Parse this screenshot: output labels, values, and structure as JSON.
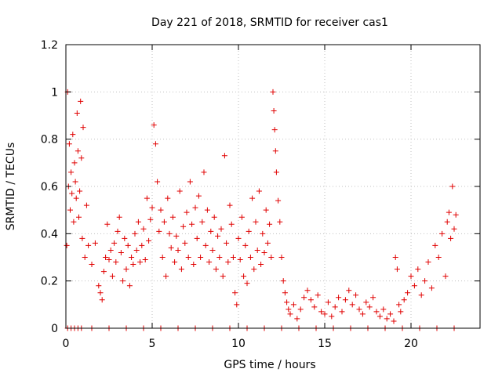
{
  "chart_data": {
    "type": "scatter",
    "title": "Day 221 of 2018, SRMTID for receiver cas1",
    "xlabel": "GPS time / hours",
    "ylabel": "SRMTID / TECUs",
    "xlim": [
      0,
      24
    ],
    "ylim": [
      0,
      1.2
    ],
    "x_ticks": [
      0,
      5,
      10,
      15,
      20
    ],
    "x_tick_labels": [
      "0",
      "5",
      "10",
      "15",
      "20"
    ],
    "y_ticks": [
      0,
      0.2,
      0.4,
      0.6,
      0.8,
      1,
      1.2
    ],
    "y_tick_labels": [
      "0",
      "0.2",
      "0.4",
      "0.6",
      "0.8",
      "1",
      "1.2"
    ],
    "grid": true,
    "marker": "+",
    "color": "#e00000",
    "series": [
      {
        "name": "SRMTID",
        "x": [
          0.05,
          0.1,
          0.15,
          0.2,
          0.25,
          0.3,
          0.35,
          0.4,
          0.45,
          0.5,
          0.55,
          0.6,
          0.65,
          0.7,
          0.75,
          0.8,
          0.85,
          0.9,
          0.95,
          1.0,
          1.1,
          1.2,
          1.3,
          1.5,
          1.7,
          1.9,
          2.0,
          2.1,
          2.2,
          2.3,
          2.4,
          2.5,
          2.6,
          2.7,
          2.8,
          2.9,
          3.0,
          3.1,
          3.2,
          3.3,
          3.4,
          3.5,
          3.6,
          3.7,
          3.8,
          3.9,
          4.0,
          4.1,
          4.2,
          4.3,
          4.4,
          4.5,
          4.6,
          4.7,
          4.8,
          4.9,
          5.0,
          5.1,
          5.2,
          5.3,
          5.4,
          5.5,
          5.6,
          5.7,
          5.8,
          5.9,
          6.0,
          6.1,
          6.2,
          6.3,
          6.4,
          6.5,
          6.6,
          6.7,
          6.8,
          6.9,
          7.0,
          7.1,
          7.2,
          7.3,
          7.4,
          7.5,
          7.6,
          7.7,
          7.8,
          7.9,
          8.0,
          8.1,
          8.2,
          8.3,
          8.4,
          8.5,
          8.6,
          8.7,
          8.8,
          8.9,
          9.0,
          9.1,
          9.2,
          9.3,
          9.4,
          9.5,
          9.6,
          9.7,
          9.8,
          9.9,
          10.0,
          10.1,
          10.2,
          10.3,
          10.4,
          10.5,
          10.6,
          10.7,
          10.8,
          10.9,
          11.0,
          11.1,
          11.2,
          11.3,
          11.4,
          11.5,
          11.6,
          11.7,
          11.8,
          11.9,
          12.0,
          12.05,
          12.1,
          12.15,
          12.2,
          12.3,
          12.4,
          12.5,
          12.6,
          12.7,
          12.8,
          12.9,
          13.0,
          13.2,
          13.4,
          13.6,
          13.8,
          14.0,
          14.2,
          14.4,
          14.6,
          14.8,
          15.0,
          15.2,
          15.4,
          15.6,
          15.8,
          16.0,
          16.2,
          16.4,
          16.6,
          16.8,
          17.0,
          17.2,
          17.4,
          17.6,
          17.8,
          18.0,
          18.2,
          18.4,
          18.6,
          18.8,
          19.0,
          19.1,
          19.2,
          19.3,
          19.4,
          19.6,
          19.8,
          20.0,
          20.2,
          20.4,
          20.6,
          20.8,
          21.0,
          21.2,
          21.4,
          21.6,
          21.8,
          22.0,
          22.1,
          22.2,
          22.3,
          22.4,
          22.5,
          22.6,
          0.1,
          0.3,
          0.5,
          0.7,
          0.9,
          1.5,
          2.5,
          3.5,
          4.5,
          5.5,
          6.5,
          7.5,
          8.5,
          9.5,
          10.5,
          11.5,
          12.5,
          13.5,
          14.5,
          15.5,
          16.5,
          17.5,
          18.5,
          19.5,
          20.5,
          21.5,
          22.5
        ],
        "y": [
          0.35,
          1.0,
          0.6,
          0.78,
          0.5,
          0.66,
          0.57,
          0.82,
          0.45,
          0.7,
          0.62,
          0.55,
          0.91,
          0.75,
          0.47,
          0.58,
          0.96,
          0.72,
          0.38,
          0.85,
          0.3,
          0.52,
          0.35,
          0.27,
          0.36,
          0.18,
          0.15,
          0.12,
          0.24,
          0.3,
          0.44,
          0.29,
          0.33,
          0.22,
          0.36,
          0.28,
          0.41,
          0.47,
          0.32,
          0.2,
          0.38,
          0.25,
          0.35,
          0.18,
          0.3,
          0.27,
          0.4,
          0.33,
          0.45,
          0.28,
          0.35,
          0.42,
          0.29,
          0.55,
          0.37,
          0.46,
          0.51,
          0.86,
          0.78,
          0.62,
          0.41,
          0.5,
          0.3,
          0.45,
          0.22,
          0.55,
          0.4,
          0.34,
          0.47,
          0.28,
          0.39,
          0.33,
          0.58,
          0.25,
          0.43,
          0.36,
          0.49,
          0.3,
          0.62,
          0.44,
          0.27,
          0.51,
          0.38,
          0.56,
          0.3,
          0.45,
          0.66,
          0.35,
          0.5,
          0.28,
          0.41,
          0.33,
          0.47,
          0.25,
          0.39,
          0.3,
          0.42,
          0.22,
          0.73,
          0.36,
          0.28,
          0.52,
          0.44,
          0.3,
          0.15,
          0.1,
          0.38,
          0.29,
          0.47,
          0.22,
          0.35,
          0.19,
          0.41,
          0.3,
          0.55,
          0.25,
          0.45,
          0.33,
          0.58,
          0.27,
          0.4,
          0.32,
          0.5,
          0.36,
          0.44,
          0.3,
          1.0,
          0.92,
          0.84,
          0.75,
          0.66,
          0.54,
          0.45,
          0.3,
          0.2,
          0.15,
          0.11,
          0.08,
          0.06,
          0.1,
          0.04,
          0.08,
          0.13,
          0.16,
          0.12,
          0.09,
          0.14,
          0.07,
          0.06,
          0.11,
          0.05,
          0.09,
          0.13,
          0.07,
          0.12,
          0.16,
          0.1,
          0.14,
          0.08,
          0.06,
          0.11,
          0.09,
          0.13,
          0.07,
          0.05,
          0.08,
          0.04,
          0.06,
          0.03,
          0.3,
          0.25,
          0.1,
          0.07,
          0.12,
          0.15,
          0.22,
          0.18,
          0.25,
          0.14,
          0.2,
          0.28,
          0.17,
          0.35,
          0.3,
          0.4,
          0.22,
          0.45,
          0.49,
          0.38,
          0.6,
          0.42,
          0.48,
          0.0,
          0.0,
          0.0,
          0.0,
          0.0,
          0.0,
          0.0,
          0.0,
          0.0,
          0.0,
          0.0,
          0.0,
          0.0,
          0.0,
          0.0,
          0.0,
          0.0,
          0.0,
          0.0,
          0.0,
          0.0,
          0.0,
          0.0,
          0.0,
          0.0,
          0.0,
          0.0
        ]
      }
    ]
  }
}
